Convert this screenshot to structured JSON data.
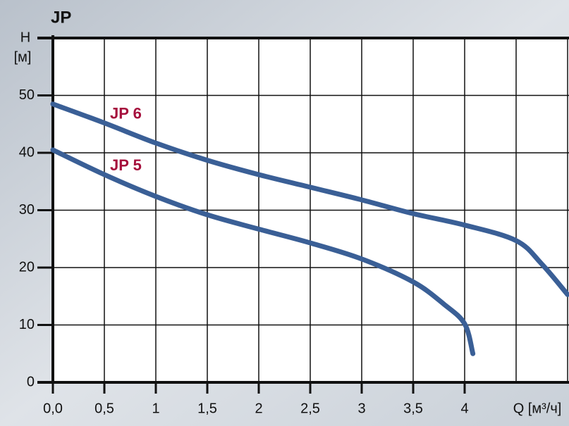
{
  "chart_data": {
    "type": "line",
    "title": "JP",
    "y_label": "H",
    "y_unit": "[м]",
    "x_label": "Q [м³/ч]",
    "xlim": [
      0,
      5
    ],
    "ylim": [
      0,
      60
    ],
    "xticks": [
      {
        "value": 0,
        "label": "0,0"
      },
      {
        "value": 0.5,
        "label": "0,5"
      },
      1,
      {
        "value": 1.5,
        "label": "1,5"
      },
      2,
      {
        "value": 2.5,
        "label": "2,5"
      },
      3,
      {
        "value": 3.5,
        "label": "3,5"
      },
      4
    ],
    "yticks": [
      0,
      10,
      20,
      30,
      40,
      50
    ],
    "grid": true,
    "series": [
      {
        "name": "JP 6",
        "color": "#3a5f96",
        "label_color": "#a50f3c",
        "x": [
          0,
          0.5,
          1,
          1.5,
          2,
          2.5,
          3,
          3.5,
          4,
          4.5,
          4.75,
          5
        ],
        "values": [
          48.5,
          45.2,
          41.7,
          38.7,
          36.2,
          34,
          31.8,
          29.4,
          27.4,
          24.7,
          20.6,
          15.3
        ]
      },
      {
        "name": "JP 5",
        "color": "#3a5f96",
        "label_color": "#a50f3c",
        "x": [
          0,
          0.5,
          1,
          1.5,
          2,
          2.5,
          3,
          3.5,
          3.8,
          4,
          4.08
        ],
        "values": [
          40.5,
          36.2,
          32.4,
          29.2,
          26.7,
          24.3,
          21.5,
          17.5,
          13.6,
          10.2,
          5
        ]
      }
    ]
  }
}
